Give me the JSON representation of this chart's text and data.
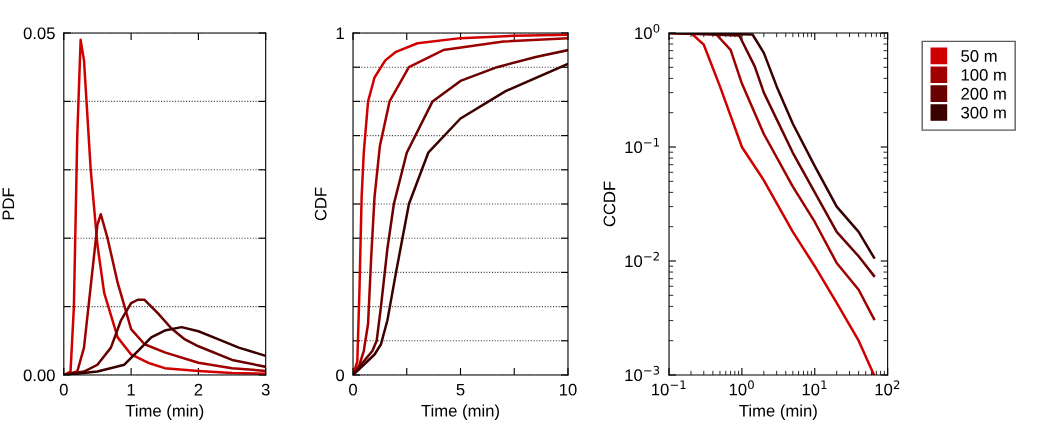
{
  "chart_data": [
    {
      "type": "line",
      "xlabel": "Time (min)",
      "ylabel": "PDF",
      "xlim": [
        0,
        3
      ],
      "ylim": [
        0,
        0.05
      ],
      "xticks": [
        0,
        1,
        2,
        3
      ],
      "yticks": [
        {
          "value": 0,
          "label": "0.00"
        },
        {
          "value": 0.01,
          "label": null
        },
        {
          "value": 0.02,
          "label": null
        },
        {
          "value": 0.03,
          "label": null
        },
        {
          "value": 0.04,
          "label": null
        },
        {
          "value": 0.05,
          "label": "0.05"
        }
      ],
      "grid": "y",
      "line_style": "solid",
      "marker": "none",
      "series": [
        {
          "color": "#d00000",
          "x": [
            0,
            0.1,
            0.15,
            0.2,
            0.25,
            0.3,
            0.4,
            0.5,
            0.6,
            0.8,
            1.0,
            1.25,
            1.5,
            2.0,
            2.5,
            3.0
          ],
          "values": [
            0,
            0.0005,
            0.01,
            0.035,
            0.049,
            0.046,
            0.03,
            0.019,
            0.012,
            0.0055,
            0.003,
            0.0018,
            0.001,
            0.0006,
            0.0003,
            0.0002
          ]
        },
        {
          "color": "#a00000",
          "x": [
            0,
            0.2,
            0.3,
            0.4,
            0.5,
            0.55,
            0.65,
            0.8,
            1.0,
            1.2,
            1.5,
            2.0,
            2.5,
            3.0
          ],
          "values": [
            0,
            0.0005,
            0.004,
            0.013,
            0.022,
            0.0235,
            0.02,
            0.0135,
            0.0067,
            0.0045,
            0.0033,
            0.0018,
            0.001,
            0.0006
          ]
        },
        {
          "color": "#6a0000",
          "x": [
            0,
            0.3,
            0.5,
            0.7,
            0.85,
            1.0,
            1.1,
            1.2,
            1.4,
            1.6,
            1.8,
            2.0,
            2.5,
            3.0
          ],
          "values": [
            0,
            0.0005,
            0.0015,
            0.004,
            0.008,
            0.0105,
            0.011,
            0.011,
            0.009,
            0.0068,
            0.0052,
            0.0042,
            0.0022,
            0.0012
          ]
        },
        {
          "color": "#3a0000",
          "x": [
            0,
            0.5,
            0.9,
            1.1,
            1.3,
            1.5,
            1.75,
            2.0,
            2.3,
            2.6,
            3.0
          ],
          "values": [
            0,
            0.0005,
            0.0015,
            0.0035,
            0.0055,
            0.0065,
            0.007,
            0.0064,
            0.0052,
            0.004,
            0.0028
          ]
        }
      ]
    },
    {
      "type": "line",
      "xlabel": "Time (min)",
      "ylabel": "CDF",
      "xlim": [
        0,
        10
      ],
      "ylim": [
        0,
        1
      ],
      "xticks": [
        0,
        {
          "value": 2.5,
          "label": null
        },
        5,
        {
          "value": 7.5,
          "label": null
        },
        10
      ],
      "yticks": [
        0,
        {
          "value": 0.1,
          "label": null
        },
        {
          "value": 0.2,
          "label": null
        },
        {
          "value": 0.3,
          "label": null
        },
        {
          "value": 0.4,
          "label": null
        },
        {
          "value": 0.5,
          "label": null
        },
        {
          "value": 0.6,
          "label": null
        },
        {
          "value": 0.7,
          "label": null
        },
        {
          "value": 0.8,
          "label": null
        },
        {
          "value": 0.9,
          "label": null
        },
        1
      ],
      "grid": "y",
      "line_style": "solid",
      "marker": "none",
      "series": [
        {
          "color": "#d00000",
          "x": [
            0,
            0.2,
            0.3,
            0.4,
            0.5,
            0.7,
            1.0,
            1.5,
            2,
            3,
            5,
            7.5,
            10
          ],
          "values": [
            0,
            0.04,
            0.25,
            0.52,
            0.65,
            0.8,
            0.87,
            0.92,
            0.945,
            0.97,
            0.985,
            0.992,
            0.995
          ]
        },
        {
          "color": "#a00000",
          "x": [
            0,
            0.3,
            0.5,
            0.7,
            0.85,
            1.0,
            1.25,
            1.7,
            2.6,
            4.2,
            7,
            10
          ],
          "values": [
            0,
            0.03,
            0.07,
            0.15,
            0.35,
            0.52,
            0.67,
            0.8,
            0.9,
            0.95,
            0.975,
            0.985
          ]
        },
        {
          "color": "#6a0000",
          "x": [
            0,
            0.5,
            0.9,
            1.1,
            1.3,
            1.6,
            1.9,
            2.5,
            3.7,
            5,
            6.7,
            8.5,
            10
          ],
          "values": [
            0,
            0.04,
            0.07,
            0.1,
            0.2,
            0.37,
            0.5,
            0.65,
            0.8,
            0.86,
            0.9,
            0.93,
            0.95
          ]
        },
        {
          "color": "#3a0000",
          "x": [
            0,
            0.5,
            1.0,
            1.3,
            1.6,
            2.0,
            2.6,
            3.5,
            5,
            7.1,
            10
          ],
          "values": [
            0,
            0.03,
            0.06,
            0.09,
            0.16,
            0.3,
            0.5,
            0.65,
            0.75,
            0.83,
            0.91
          ]
        }
      ]
    },
    {
      "type": "line",
      "xlabel": "Time (min)",
      "ylabel": "CCDF",
      "log": "xy",
      "xlim": [
        0.1,
        100
      ],
      "ylim": [
        0.001,
        1
      ],
      "xticks": [
        {
          "value": 0.1,
          "label": "10$^{−1}$"
        },
        {
          "value": 1,
          "label": "10$^{0}$"
        },
        {
          "value": 10,
          "label": "10$^{1}$"
        },
        {
          "value": 100,
          "label": "10$^{2}$"
        }
      ],
      "yticks": [
        {
          "value": 0.001,
          "label": "10$^{−3}$"
        },
        {
          "value": 0.01,
          "label": "10$^{−2}$"
        },
        {
          "value": 0.1,
          "label": "10$^{−1}$"
        },
        {
          "value": 1,
          "label": "10$^{0}$"
        }
      ],
      "grid": false,
      "legend": "right",
      "line_style": "solid",
      "marker": "none",
      "series": [
        {
          "name": "50 m",
          "color": "#d00000",
          "x": [
            0.1,
            0.2,
            0.3,
            0.5,
            1,
            2,
            5,
            10,
            20,
            40,
            65
          ],
          "values": [
            1,
            1,
            0.79,
            0.34,
            0.1,
            0.051,
            0.018,
            0.009,
            0.0043,
            0.002,
            0.001
          ]
        },
        {
          "name": "100 m",
          "color": "#a00000",
          "x": [
            0.1,
            0.44,
            0.7,
            1,
            2,
            5,
            10,
            20,
            40,
            65
          ],
          "values": [
            1,
            0.98,
            0.71,
            0.36,
            0.13,
            0.045,
            0.022,
            0.0096,
            0.0056,
            0.0031
          ]
        },
        {
          "name": "200 m",
          "color": "#6a0000",
          "x": [
            0.1,
            0.92,
            1.5,
            2,
            5,
            10,
            20,
            40,
            65
          ],
          "values": [
            1,
            0.95,
            0.51,
            0.3,
            0.089,
            0.04,
            0.018,
            0.011,
            0.0074
          ]
        },
        {
          "name": "300 m",
          "color": "#3a0000",
          "x": [
            0.1,
            1.4,
            2,
            3,
            5,
            10,
            20,
            40,
            65
          ],
          "values": [
            1,
            0.97,
            0.67,
            0.34,
            0.16,
            0.068,
            0.03,
            0.018,
            0.0107
          ]
        }
      ]
    }
  ]
}
